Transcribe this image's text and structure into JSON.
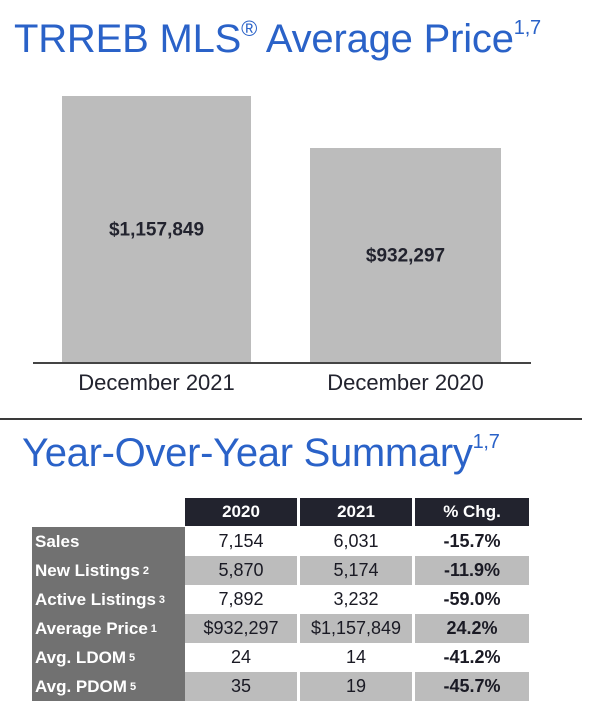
{
  "header": {
    "title": "TRREB MLS",
    "title_reg": "®",
    "title_rest": " Average Price",
    "title_sup": "1,7"
  },
  "chart_data": {
    "type": "bar",
    "title": "TRREB MLS® Average Price",
    "categories": [
      "December 2021",
      "December 2020"
    ],
    "values": [
      1157849,
      932297
    ],
    "value_labels": [
      "$1,157,849",
      "$932,297"
    ],
    "xlabel": "",
    "ylabel": "",
    "ylim": [
      0,
      1300000
    ],
    "grid": false,
    "legend": "none",
    "bar_color": "#bcbcbc"
  },
  "summary": {
    "title": "Year-Over-Year Summary",
    "title_sup": "1,7",
    "columns": [
      "2020",
      "2021",
      "% Chg."
    ],
    "rows": [
      {
        "label": "Sales",
        "sup": "",
        "v2020": "7,154",
        "v2021": "6,031",
        "chg": "-15.7%"
      },
      {
        "label": "New Listings",
        "sup": "2",
        "v2020": "5,870",
        "v2021": "5,174",
        "chg": "-11.9%"
      },
      {
        "label": "Active Listings",
        "sup": "3",
        "v2020": "7,892",
        "v2021": "3,232",
        "chg": "-59.0%"
      },
      {
        "label": "Average Price",
        "sup": "1",
        "v2020": "$932,297",
        "v2021": "$1,157,849",
        "chg": "24.2%"
      },
      {
        "label": "Avg. LDOM",
        "sup": "5",
        "v2020": "24",
        "v2021": "14",
        "chg": "-41.2%"
      },
      {
        "label": "Avg. PDOM",
        "sup": "5",
        "v2020": "35",
        "v2021": "19",
        "chg": "-45.7%"
      }
    ]
  },
  "colors": {
    "title_blue": "#2a62c8",
    "header_dark": "#22232e",
    "label_gray": "#717171",
    "row_shade": "#bcbcbc"
  }
}
